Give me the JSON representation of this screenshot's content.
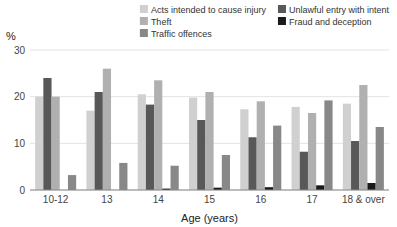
{
  "chart_data": {
    "type": "bar",
    "xlabel": "Age (years)",
    "ylabel": "%",
    "categories": [
      "10-12",
      "13",
      "14",
      "15",
      "16",
      "17",
      "18 & over"
    ],
    "series": [
      {
        "name": "Acts intended to cause injury",
        "color": "#d0d0d0",
        "values": [
          20,
          17,
          20.5,
          19.8,
          17.3,
          17.8,
          18.5
        ]
      },
      {
        "name": "Unlawful entry with intent",
        "color": "#585858",
        "values": [
          24,
          21,
          18.3,
          15,
          11.3,
          8.2,
          10.5
        ]
      },
      {
        "name": "Theft",
        "color": "#b0b0b0",
        "values": [
          20,
          26,
          23.5,
          21,
          19,
          16.5,
          22.5
        ]
      },
      {
        "name": "Fraud and deception",
        "color": "#1a1a1a",
        "values": [
          0,
          0,
          0.3,
          0.5,
          0.6,
          1.0,
          1.5
        ]
      },
      {
        "name": "Traffic offences",
        "color": "#888888",
        "values": [
          3.2,
          5.8,
          5.2,
          7.5,
          13.8,
          19.2,
          13.5
        ]
      }
    ],
    "ylim": [
      0,
      30
    ],
    "yticks": [
      0,
      10,
      20,
      30
    ],
    "grid": true,
    "legend": "upper right"
  }
}
